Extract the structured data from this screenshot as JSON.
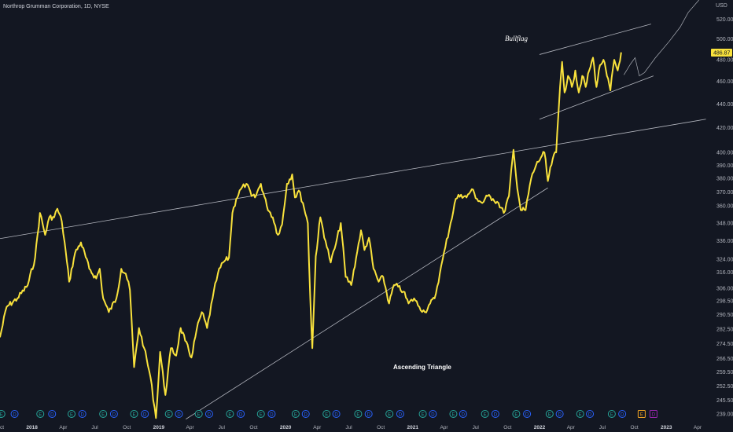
{
  "header": {
    "title": "Northrop Grumman Corporation, 1D, NYSE",
    "currency": "USD"
  },
  "annotations": {
    "bullflag": "Bullflag",
    "triangle": "Ascending Triangle"
  },
  "last_price": "486.87",
  "colors": {
    "background": "#131722",
    "price_line": "#f9e23c",
    "trendline": "#d1d4dc",
    "axis_text": "#b2b5be",
    "earnings": "#f5a623",
    "dividend": "#2962ff",
    "event": "#26a69a",
    "split": "#9c27b0"
  },
  "chart_data": {
    "type": "line",
    "title": "",
    "xlabel": "",
    "ylabel": "",
    "y_scale": "log",
    "ylim": [
      236,
      540
    ],
    "y_ticks": [
      520.0,
      500.0,
      480.0,
      460.0,
      440.0,
      420.0,
      400.0,
      390.0,
      380.0,
      370.0,
      360.0,
      348.0,
      336.0,
      324.0,
      316.0,
      306.0,
      298.5,
      290.5,
      282.5,
      274.5,
      266.5,
      259.5,
      252.5,
      245.5,
      239.0
    ],
    "y_tick_labels": [
      "520.00",
      "500.00",
      "480.00",
      "460.00",
      "440.00",
      "420.00",
      "400.00",
      "390.00",
      "380.00",
      "370.00",
      "360.00",
      "348.00",
      "336.00",
      "324.00",
      "316.00",
      "306.00",
      "298.50",
      "290.50",
      "282.50",
      "274.50",
      "266.50",
      "259.50",
      "252.50",
      "245.50",
      "239.00"
    ],
    "x_ticks": [
      "2017-10-01",
      "2018-01-01",
      "2018-04-01",
      "2018-07-01",
      "2018-10-01",
      "2019-01-01",
      "2019-04-01",
      "2019-07-01",
      "2019-10-01",
      "2020-01-01",
      "2020-04-01",
      "2020-07-01",
      "2020-10-01",
      "2021-01-01",
      "2021-04-01",
      "2021-07-01",
      "2021-10-01",
      "2022-01-01",
      "2022-04-01",
      "2022-07-01",
      "2022-10-01",
      "2023-01-01",
      "2023-04-01"
    ],
    "x_tick_labels": [
      "Oct",
      "2018",
      "Apr",
      "Jul",
      "Oct",
      "2019",
      "Apr",
      "Jul",
      "Oct",
      "2020",
      "Apr",
      "Jul",
      "Oct",
      "2021",
      "Apr",
      "Jul",
      "Oct",
      "2022",
      "Apr",
      "Jul",
      "Oct",
      "2023",
      "Apr"
    ],
    "xlim": [
      "2017-10-01",
      "2023-05-05"
    ],
    "series": [
      {
        "points": [
          [
            "2017-10-01",
            278
          ],
          [
            "2017-10-20",
            295
          ],
          [
            "2017-11-20",
            300
          ],
          [
            "2017-12-20",
            308
          ],
          [
            "2018-01-10",
            325
          ],
          [
            "2018-01-24",
            355
          ],
          [
            "2018-02-08",
            340
          ],
          [
            "2018-02-20",
            352
          ],
          [
            "2018-03-06",
            352
          ],
          [
            "2018-03-15",
            358
          ],
          [
            "2018-03-28",
            349
          ],
          [
            "2018-04-05",
            335
          ],
          [
            "2018-04-18",
            310
          ],
          [
            "2018-05-05",
            328
          ],
          [
            "2018-05-22",
            335
          ],
          [
            "2018-06-15",
            318
          ],
          [
            "2018-07-05",
            312
          ],
          [
            "2018-07-15",
            318
          ],
          [
            "2018-07-25",
            300
          ],
          [
            "2018-08-10",
            292
          ],
          [
            "2018-09-01",
            300
          ],
          [
            "2018-09-15",
            318
          ],
          [
            "2018-09-28",
            315
          ],
          [
            "2018-10-10",
            305
          ],
          [
            "2018-10-22",
            262
          ],
          [
            "2018-11-05",
            283
          ],
          [
            "2018-11-20",
            272
          ],
          [
            "2018-12-08",
            257
          ],
          [
            "2018-12-24",
            237
          ],
          [
            "2019-01-05",
            270
          ],
          [
            "2019-01-20",
            248
          ],
          [
            "2019-02-05",
            272
          ],
          [
            "2019-02-20",
            268
          ],
          [
            "2019-03-05",
            283
          ],
          [
            "2019-03-18",
            276
          ],
          [
            "2019-04-05",
            267
          ],
          [
            "2019-04-20",
            282
          ],
          [
            "2019-05-05",
            292
          ],
          [
            "2019-05-20",
            283
          ],
          [
            "2019-06-05",
            300
          ],
          [
            "2019-06-20",
            315
          ],
          [
            "2019-07-05",
            322
          ],
          [
            "2019-07-22",
            325
          ],
          [
            "2019-08-01",
            355
          ],
          [
            "2019-08-12",
            365
          ],
          [
            "2019-08-25",
            372
          ],
          [
            "2019-09-10",
            376
          ],
          [
            "2019-09-25",
            367
          ],
          [
            "2019-10-05",
            366
          ],
          [
            "2019-10-22",
            376
          ],
          [
            "2019-11-08",
            360
          ],
          [
            "2019-11-25",
            352
          ],
          [
            "2019-12-10",
            340
          ],
          [
            "2019-12-22",
            347
          ],
          [
            "2020-01-05",
            376
          ],
          [
            "2020-01-20",
            383
          ],
          [
            "2020-01-28",
            366
          ],
          [
            "2020-02-08",
            371
          ],
          [
            "2020-02-20",
            362
          ],
          [
            "2020-03-05",
            348
          ],
          [
            "2020-03-12",
            300
          ],
          [
            "2020-03-18",
            272
          ],
          [
            "2020-03-28",
            326
          ],
          [
            "2020-04-10",
            352
          ],
          [
            "2020-04-25",
            336
          ],
          [
            "2020-05-10",
            322
          ],
          [
            "2020-05-25",
            334
          ],
          [
            "2020-06-08",
            348
          ],
          [
            "2020-06-22",
            313
          ],
          [
            "2020-07-08",
            308
          ],
          [
            "2020-07-22",
            325
          ],
          [
            "2020-08-05",
            343
          ],
          [
            "2020-08-15",
            330
          ],
          [
            "2020-08-28",
            338
          ],
          [
            "2020-09-10",
            318
          ],
          [
            "2020-09-25",
            310
          ],
          [
            "2020-10-08",
            313
          ],
          [
            "2020-10-25",
            297
          ],
          [
            "2020-11-08",
            308
          ],
          [
            "2020-11-20",
            307
          ],
          [
            "2020-12-05",
            304
          ],
          [
            "2020-12-20",
            297
          ],
          [
            "2021-01-05",
            300
          ],
          [
            "2021-01-20",
            295
          ],
          [
            "2021-02-05",
            292
          ],
          [
            "2021-02-20",
            297
          ],
          [
            "2021-03-05",
            300
          ],
          [
            "2021-03-20",
            315
          ],
          [
            "2021-04-05",
            332
          ],
          [
            "2021-04-20",
            348
          ],
          [
            "2021-05-05",
            365
          ],
          [
            "2021-05-20",
            368
          ],
          [
            "2021-06-05",
            366
          ],
          [
            "2021-06-20",
            372
          ],
          [
            "2021-07-05",
            365
          ],
          [
            "2021-07-20",
            362
          ],
          [
            "2021-08-05",
            367
          ],
          [
            "2021-08-20",
            365
          ],
          [
            "2021-09-05",
            362
          ],
          [
            "2021-09-20",
            355
          ],
          [
            "2021-10-05",
            367
          ],
          [
            "2021-10-18",
            402
          ],
          [
            "2021-10-26",
            380
          ],
          [
            "2021-11-08",
            357
          ],
          [
            "2021-11-22",
            357
          ],
          [
            "2021-12-08",
            380
          ],
          [
            "2021-12-22",
            390
          ],
          [
            "2022-01-05",
            396
          ],
          [
            "2022-01-15",
            400
          ],
          [
            "2022-01-25",
            378
          ],
          [
            "2022-02-08",
            395
          ],
          [
            "2022-02-18",
            400
          ],
          [
            "2022-02-24",
            430
          ],
          [
            "2022-03-01",
            455
          ],
          [
            "2022-03-07",
            478
          ],
          [
            "2022-03-14",
            450
          ],
          [
            "2022-03-24",
            465
          ],
          [
            "2022-04-04",
            455
          ],
          [
            "2022-04-14",
            470
          ],
          [
            "2022-04-24",
            450
          ],
          [
            "2022-05-04",
            465
          ],
          [
            "2022-05-14",
            455
          ],
          [
            "2022-05-24",
            470
          ],
          [
            "2022-06-04",
            482
          ],
          [
            "2022-06-14",
            455
          ],
          [
            "2022-06-24",
            475
          ],
          [
            "2022-07-04",
            480
          ],
          [
            "2022-07-14",
            465
          ],
          [
            "2022-07-24",
            452
          ],
          [
            "2022-08-04",
            480
          ],
          [
            "2022-08-14",
            470
          ],
          [
            "2022-08-24",
            486.87
          ]
        ]
      }
    ],
    "trendlines": [
      {
        "kind": "resistance",
        "from": [
          "2017-10-01",
          337.5
        ],
        "to": [
          "2023-04-25",
          427
        ]
      },
      {
        "kind": "ascending-support",
        "from": [
          "2019-03-20",
          236.5
        ],
        "to": [
          "2022-01-25",
          373
        ]
      },
      {
        "kind": "flag-upper",
        "from": [
          "2022-01-01",
          485
        ],
        "to": [
          "2022-11-18",
          515
        ]
      },
      {
        "kind": "flag-lower",
        "from": [
          "2022-01-01",
          427
        ],
        "to": [
          "2022-11-25",
          465
        ]
      }
    ],
    "projection": [
      [
        "2022-09-01",
        466
      ],
      [
        "2022-09-20",
        476
      ],
      [
        "2022-10-03",
        482
      ],
      [
        "2022-10-15",
        465
      ],
      [
        "2022-10-30",
        468
      ],
      [
        "2022-12-01",
        482
      ],
      [
        "2023-01-10",
        498
      ],
      [
        "2023-02-10",
        512
      ],
      [
        "2023-03-05",
        527
      ],
      [
        "2023-04-05",
        540
      ]
    ],
    "events": [
      {
        "date": "2017-10-05",
        "type": "E"
      },
      {
        "date": "2017-11-12",
        "type": "D"
      },
      {
        "date": "2018-01-25",
        "type": "E"
      },
      {
        "date": "2018-02-28",
        "type": "D"
      },
      {
        "date": "2018-04-25",
        "type": "E"
      },
      {
        "date": "2018-05-26",
        "type": "D"
      },
      {
        "date": "2018-07-25",
        "type": "E"
      },
      {
        "date": "2018-08-25",
        "type": "D"
      },
      {
        "date": "2018-10-22",
        "type": "E"
      },
      {
        "date": "2018-11-22",
        "type": "D"
      },
      {
        "date": "2019-01-30",
        "type": "E"
      },
      {
        "date": "2019-02-28",
        "type": "D"
      },
      {
        "date": "2019-04-26",
        "type": "E"
      },
      {
        "date": "2019-05-26",
        "type": "D"
      },
      {
        "date": "2019-07-25",
        "type": "E"
      },
      {
        "date": "2019-08-25",
        "type": "D"
      },
      {
        "date": "2019-10-22",
        "type": "E"
      },
      {
        "date": "2019-11-22",
        "type": "D"
      },
      {
        "date": "2020-01-30",
        "type": "E"
      },
      {
        "date": "2020-02-28",
        "type": "D"
      },
      {
        "date": "2020-04-28",
        "type": "E"
      },
      {
        "date": "2020-05-26",
        "type": "D"
      },
      {
        "date": "2020-07-28",
        "type": "E"
      },
      {
        "date": "2020-08-27",
        "type": "D"
      },
      {
        "date": "2020-10-26",
        "type": "E"
      },
      {
        "date": "2020-11-26",
        "type": "D"
      },
      {
        "date": "2021-01-30",
        "type": "E"
      },
      {
        "date": "2021-02-28",
        "type": "D"
      },
      {
        "date": "2021-04-28",
        "type": "E"
      },
      {
        "date": "2021-05-26",
        "type": "D"
      },
      {
        "date": "2021-07-28",
        "type": "E"
      },
      {
        "date": "2021-08-27",
        "type": "D"
      },
      {
        "date": "2021-10-26",
        "type": "E"
      },
      {
        "date": "2021-11-26",
        "type": "D"
      },
      {
        "date": "2022-01-30",
        "type": "E"
      },
      {
        "date": "2022-02-28",
        "type": "D"
      },
      {
        "date": "2022-04-28",
        "type": "E"
      },
      {
        "date": "2022-05-26",
        "type": "D"
      },
      {
        "date": "2022-07-28",
        "type": "E"
      },
      {
        "date": "2022-08-27",
        "type": "D"
      },
      {
        "date": "2022-10-22",
        "type": "E-upcoming"
      },
      {
        "date": "2022-11-25",
        "type": "D-upcoming"
      }
    ]
  }
}
